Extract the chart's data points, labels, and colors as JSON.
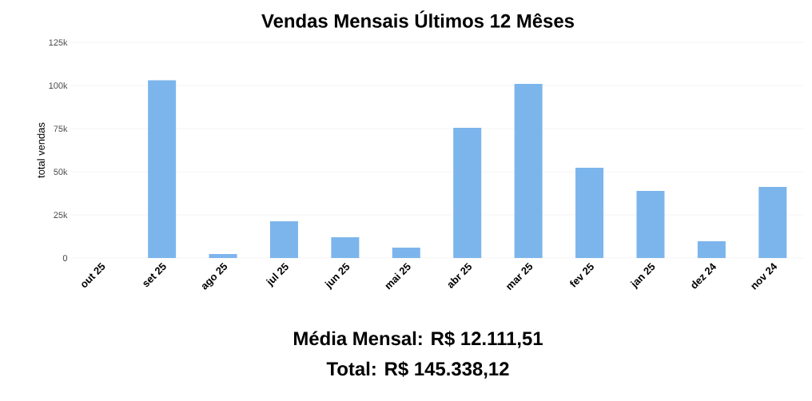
{
  "chart_data": {
    "type": "bar",
    "title": "Vendas Mensais Últimos 12 Mêses",
    "ylabel": "total vendas",
    "categories": [
      "out 25",
      "set 25",
      "ago 25",
      "jul 25",
      "jun 25",
      "mai 25",
      "abr 25",
      "mar 25",
      "fev 25",
      "jan 25",
      "dez 24",
      "nov 24"
    ],
    "values": [
      0,
      103000,
      2300,
      21300,
      12000,
      6000,
      75500,
      100900,
      52300,
      38900,
      9700,
      41200
    ],
    "color": "#7cb5ec",
    "ylim": [
      0,
      125000
    ],
    "yticks": [
      0,
      {
        "value": 25000,
        "label": "25k"
      },
      {
        "value": 50000,
        "label": "50k"
      },
      {
        "value": 75000,
        "label": "75k"
      },
      {
        "value": 100000,
        "label": "100k"
      },
      {
        "value": 125000,
        "label": "125k"
      }
    ],
    "grid": "y",
    "annotations": [
      "Média Mensal: R$ 12.111,51",
      "Total: R$ 145.338,12"
    ]
  }
}
